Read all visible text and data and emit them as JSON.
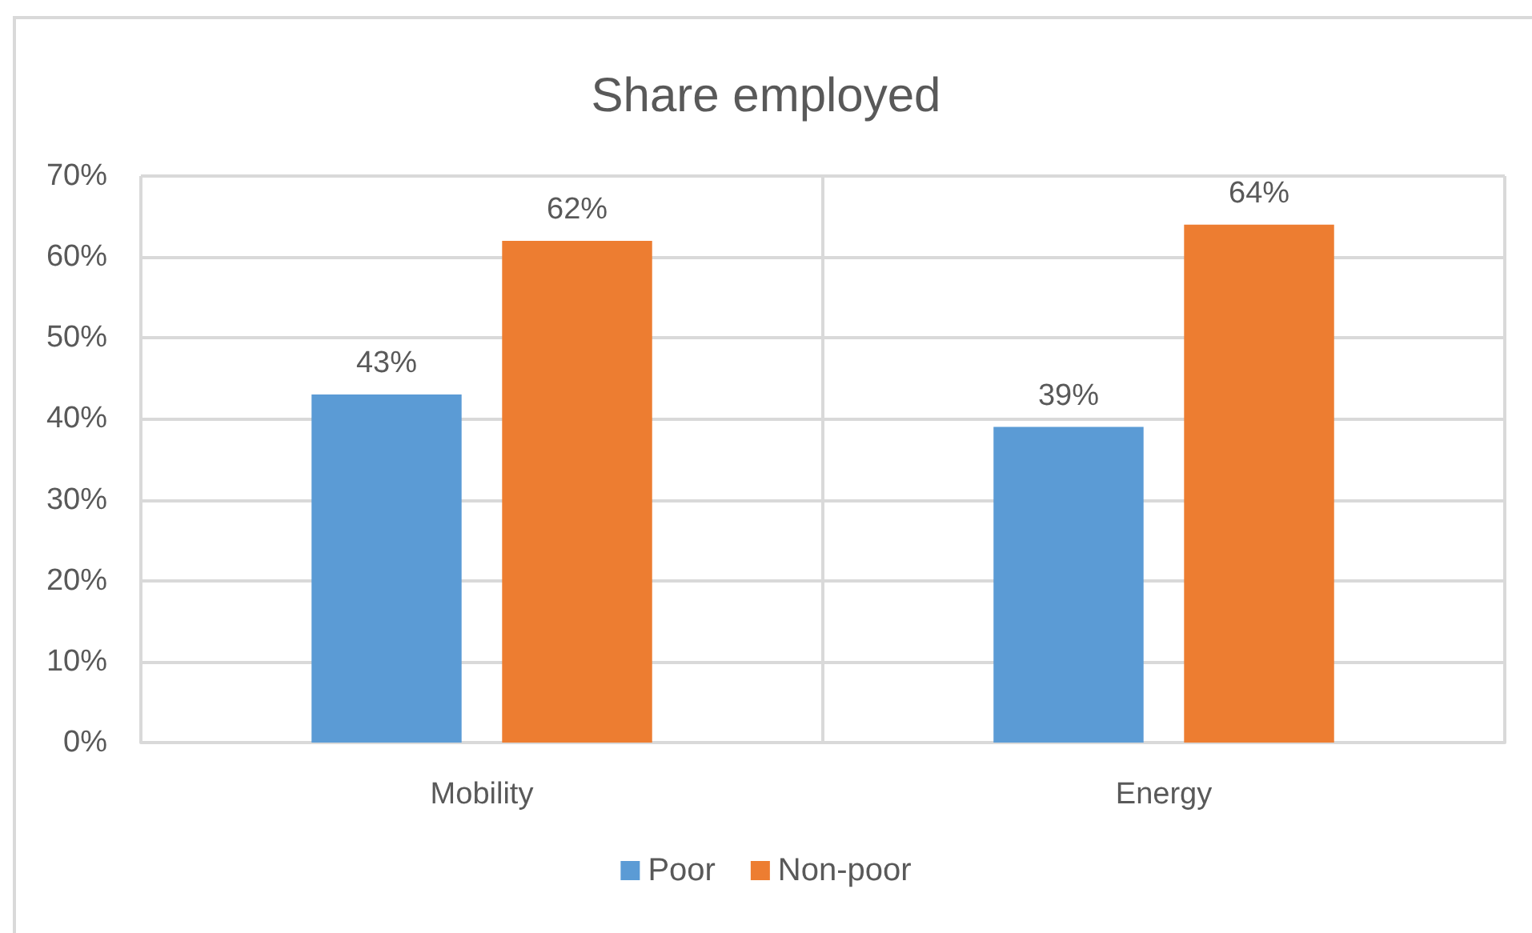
{
  "chart_data": {
    "type": "bar",
    "title": "Share employed",
    "categories": [
      "Mobility",
      "Energy"
    ],
    "series": [
      {
        "name": "Poor",
        "color": "#5b9bd5",
        "values": [
          43,
          39
        ],
        "value_labels": [
          "43%",
          "39%"
        ]
      },
      {
        "name": "Non-poor",
        "color": "#ed7d31",
        "values": [
          62,
          64
        ],
        "value_labels": [
          "62%",
          "64%"
        ]
      }
    ],
    "ylim": [
      0,
      70
    ],
    "yticks": [
      {
        "value": 0,
        "label": "0%"
      },
      {
        "value": 10,
        "label": "10%"
      },
      {
        "value": 20,
        "label": "20%"
      },
      {
        "value": 30,
        "label": "30%"
      },
      {
        "value": 40,
        "label": "40%"
      },
      {
        "value": 50,
        "label": "50%"
      },
      {
        "value": 60,
        "label": "60%"
      },
      {
        "value": 70,
        "label": "70%"
      }
    ],
    "grid": true,
    "legend": "bottom"
  }
}
